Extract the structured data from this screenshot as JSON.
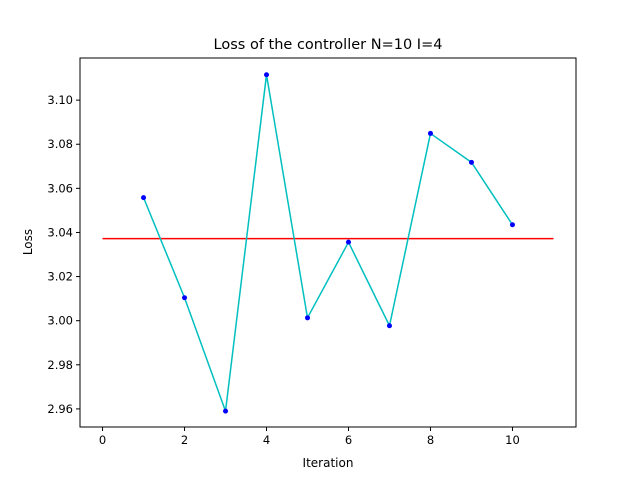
{
  "chart_data": {
    "type": "line",
    "title": "Loss of the controller N=10 I=4",
    "xlabel": "Iteration",
    "ylabel": "Loss",
    "xlim": [
      -0.55,
      11.55
    ],
    "ylim": [
      2.9518,
      3.1191
    ],
    "x_ticks": [
      0,
      2,
      4,
      6,
      8,
      10
    ],
    "x_tick_labels": [
      "0",
      "2",
      "4",
      "6",
      "8",
      "10"
    ],
    "y_ticks": [
      2.96,
      2.98,
      3.0,
      3.02,
      3.04,
      3.06,
      3.08,
      3.1
    ],
    "y_tick_labels": [
      "2.96",
      "2.98",
      "3.00",
      "3.02",
      "3.04",
      "3.06",
      "3.08",
      "3.10"
    ],
    "grid": false,
    "series": [
      {
        "x": [
          1,
          2,
          3,
          4,
          5,
          6,
          7,
          8,
          9,
          10
        ],
        "values": [
          3.0558,
          3.0104,
          2.959,
          3.1115,
          3.0013,
          3.0356,
          2.9977,
          3.0849,
          3.0718,
          3.0435
        ],
        "line_color": "#00bfbf",
        "marker_color": "#0000ff"
      },
      {
        "x": [
          0,
          11
        ],
        "values": [
          3.0372,
          3.0372
        ],
        "line_color": "#ff0000"
      }
    ]
  }
}
